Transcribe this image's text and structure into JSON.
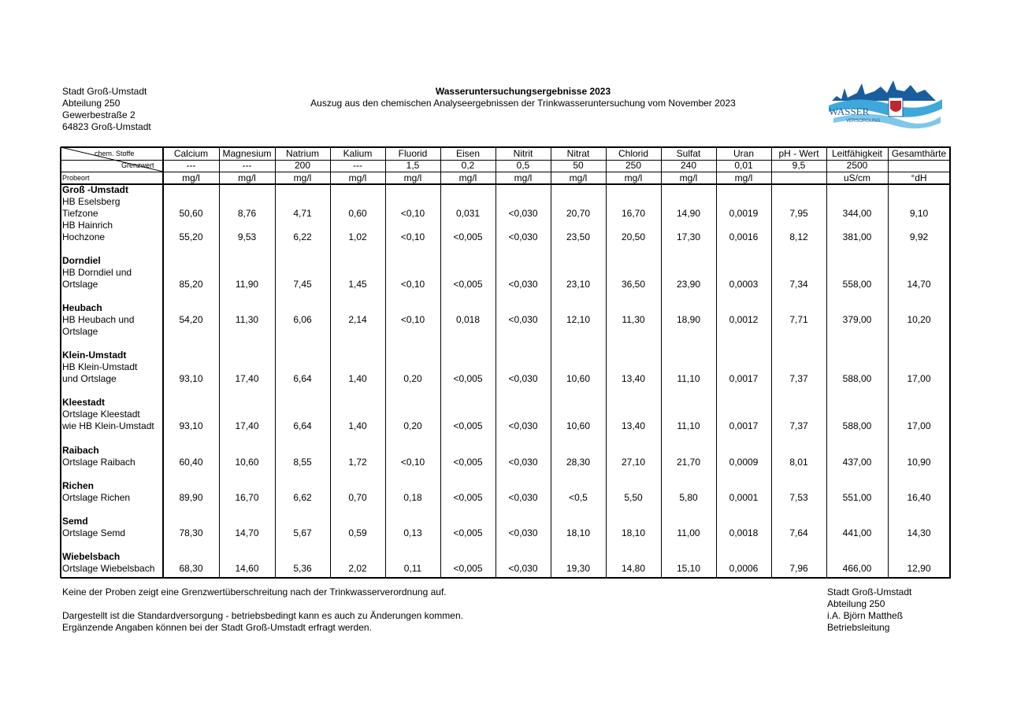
{
  "header": {
    "address": [
      "Stadt Groß-Umstadt",
      "Abteilung 250",
      "Gewerbestraße 2",
      "64823 Groß-Umstadt"
    ],
    "title": "Wasseruntersuchungsergebnisse 2023",
    "subtitle": "Auszug aus den chemischen Analyseergebnissen der Trinkwasseruntersuchung vom November 2023"
  },
  "logo": {
    "text": "WASSER",
    "subtext": "VERSORGUNG"
  },
  "table": {
    "corner": {
      "substances": "chem. Stoffe",
      "limit": "Grenzwert",
      "location": "Probeort"
    },
    "columns": [
      {
        "name": "Calcium",
        "limit": "---",
        "unit": "mg/l"
      },
      {
        "name": "Magnesium",
        "limit": "---",
        "unit": "mg/l"
      },
      {
        "name": "Natrium",
        "limit": "200",
        "unit": "mg/l"
      },
      {
        "name": "Kalium",
        "limit": "---",
        "unit": "mg/l"
      },
      {
        "name": "Fluorid",
        "limit": "1,5",
        "unit": "mg/l"
      },
      {
        "name": "Eisen",
        "limit": "0,2",
        "unit": "mg/l"
      },
      {
        "name": "Nitrit",
        "limit": "0,5",
        "unit": "mg/l"
      },
      {
        "name": "Nitrat",
        "limit": "50",
        "unit": "mg/l"
      },
      {
        "name": "Chlorid",
        "limit": "250",
        "unit": "mg/l"
      },
      {
        "name": "Sulfat",
        "limit": "240",
        "unit": "mg/l"
      },
      {
        "name": "Uran",
        "limit": "0,01",
        "unit": "mg/l"
      },
      {
        "name": "pH - Wert",
        "limit": "9,5"
      },
      {
        "name": "Leitfähigkeit",
        "limit": "2500",
        "unit": "uS/cm"
      },
      {
        "name": "Gesamthärte",
        "unit": "°dH"
      }
    ],
    "groups": [
      {
        "name": "Groß -Umstadt",
        "rows": [
          {
            "label": "HB Eselsberg"
          },
          {
            "label": "Tiefzone",
            "values": [
              "50,60",
              "8,76",
              "4,71",
              "0,60",
              "<0,10",
              "0,031",
              "<0,030",
              "20,70",
              "16,70",
              "14,90",
              "0,0019",
              "7,95",
              "344,00",
              "9,10"
            ]
          },
          {
            "label": "HB Hainrich"
          },
          {
            "label": "Hochzone",
            "values": [
              "55,20",
              "9,53",
              "6,22",
              "1,02",
              "<0,10",
              "<0,005",
              "<0,030",
              "23,50",
              "20,50",
              "17,30",
              "0,0016",
              "8,12",
              "381,00",
              "9,92"
            ]
          }
        ]
      },
      {
        "name": "Dorndiel",
        "rows": [
          {
            "label": "HB Dorndiel und"
          },
          {
            "label": "Ortslage",
            "values": [
              "85,20",
              "11,90",
              "7,45",
              "1,45",
              "<0,10",
              "<0,005",
              "<0,030",
              "23,10",
              "36,50",
              "23,90",
              "0,0003",
              "7,34",
              "558,00",
              "14,70"
            ]
          }
        ]
      },
      {
        "name": "Heubach",
        "rows": [
          {
            "label": "HB Heubach und",
            "values": [
              "54,20",
              "11,30",
              "6,06",
              "2,14",
              "<0,10",
              "0,018",
              "<0,030",
              "12,10",
              "11,30",
              "18,90",
              "0,0012",
              "7,71",
              "379,00",
              "10,20"
            ]
          },
          {
            "label": "Ortslage"
          }
        ]
      },
      {
        "name": "Klein-Umstadt",
        "rows": [
          {
            "label": "HB Klein-Umstadt"
          },
          {
            "label": "und Ortslage",
            "values": [
              "93,10",
              "17,40",
              "6,64",
              "1,40",
              "0,20",
              "<0,005",
              "<0,030",
              "10,60",
              "13,40",
              "11,10",
              "0,0017",
              "7,37",
              "588,00",
              "17,00"
            ]
          }
        ]
      },
      {
        "name": "Kleestadt",
        "rows": [
          {
            "label": "Ortslage Kleestadt"
          },
          {
            "label": "wie HB Klein-Umstadt",
            "values": [
              "93,10",
              "17,40",
              "6,64",
              "1,40",
              "0,20",
              "<0,005",
              "<0,030",
              "10,60",
              "13,40",
              "11,10",
              "0,0017",
              "7,37",
              "588,00",
              "17,00"
            ]
          }
        ]
      },
      {
        "name": "Raibach",
        "rows": [
          {
            "label": "Ortslage Raibach",
            "values": [
              "60,40",
              "10,60",
              "8,55",
              "1,72",
              "<0,10",
              "<0,005",
              "<0,030",
              "28,30",
              "27,10",
              "21,70",
              "0,0009",
              "8,01",
              "437,00",
              "10,90"
            ]
          }
        ]
      },
      {
        "name": "Richen",
        "rows": [
          {
            "label": "Ortslage Richen",
            "values": [
              "89,90",
              "16,70",
              "6,62",
              "0,70",
              "0,18",
              "<0,005",
              "<0,030",
              "<0,5",
              "5,50",
              "5,80",
              "0,0001",
              "7,53",
              "551,00",
              "16,40"
            ]
          }
        ]
      },
      {
        "name": "Semd",
        "rows": [
          {
            "label": "Ortslage Semd",
            "values": [
              "78,30",
              "14,70",
              "5,67",
              "0,59",
              "0,13",
              "<0,005",
              "<0,030",
              "18,10",
              "18,10",
              "11,00",
              "0,0018",
              "7,64",
              "441,00",
              "14,30"
            ]
          }
        ]
      },
      {
        "name": "Wiebelsbach",
        "rows": [
          {
            "label": "Ortslage Wiebelsbach",
            "values": [
              "68,30",
              "14,60",
              "5,36",
              "2,02",
              "0,11",
              "<0,005",
              "<0,030",
              "19,30",
              "14,80",
              "15,10",
              "0,0006",
              "7,96",
              "466,00",
              "12,90"
            ]
          }
        ]
      }
    ]
  },
  "footer": {
    "notes": [
      "Keine der Proben zeigt eine Grenzwertüberschreitung nach der Trinkwasserverordnung auf.",
      "Dargestellt ist die Standardversorgung - betriebsbedingt kann es auch zu Änderungen kommen.",
      "Ergänzende Angaben können bei der Stadt Groß-Umstadt erfragt werden."
    ],
    "signature": [
      "Stadt Groß-Umstadt",
      "Abteilung 250",
      "i.A. Björn Mattheß",
      "Betriebsleitung"
    ]
  }
}
